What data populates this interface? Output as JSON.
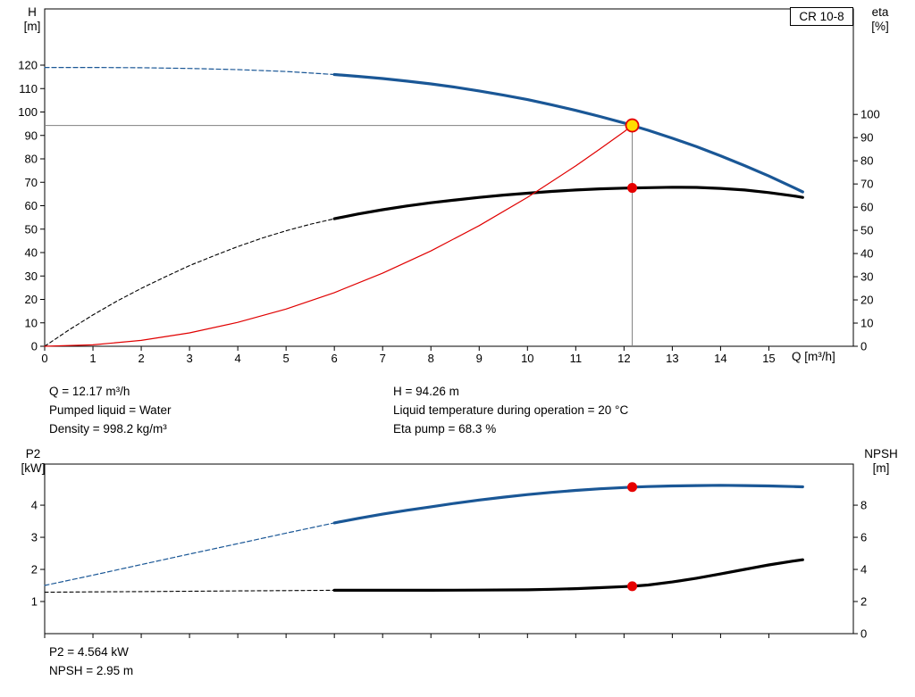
{
  "model_box": "CR 10-8",
  "info_top": {
    "col1": [
      "Q = 12.17 m³/h",
      "Pumped liquid = Water",
      "Density = 998.2 kg/m³"
    ],
    "col2": [
      "H = 94.26 m",
      "Liquid temperature during operation = 20 °C",
      "Eta pump = 68.3 %"
    ]
  },
  "info_bottom": [
    "P2 = 4.564 kW",
    "NPSH = 2.95 m"
  ],
  "chart_data": [
    {
      "type": "line",
      "title": "CR 10-8",
      "x_axis": {
        "label": "Q [m³/h]",
        "min": 0,
        "max": 16.75,
        "ticks": [
          0,
          1,
          2,
          3,
          4,
          5,
          6,
          7,
          8,
          9,
          10,
          11,
          12,
          13,
          14,
          15
        ],
        "show_tick_labels": true
      },
      "y_left": {
        "label": "H",
        "unit": "[m]",
        "min": 0,
        "max": 144,
        "ticks": [
          0,
          10,
          20,
          30,
          40,
          50,
          60,
          70,
          80,
          90,
          100,
          110,
          120
        ]
      },
      "y_right": {
        "label": "eta",
        "unit": "[%]",
        "min": 0,
        "max": 145.5,
        "ticks": [
          0,
          10,
          20,
          30,
          40,
          50,
          60,
          70,
          80,
          90,
          100
        ]
      },
      "crosshair": {
        "x": 12.17,
        "y": 94.26,
        "axis": "left",
        "color": "#808080"
      },
      "series": [
        {
          "name": "head-curve-extrapolated",
          "axis": "left",
          "color": "#1a5796",
          "width": 1.2,
          "dash": "5,3",
          "points": [
            [
              0,
              119
            ],
            [
              1,
              119
            ],
            [
              2,
              118.9
            ],
            [
              3,
              118.6
            ],
            [
              4,
              118.1
            ],
            [
              5,
              117.3
            ],
            [
              6,
              116
            ]
          ]
        },
        {
          "name": "head-curve",
          "axis": "left",
          "color": "#1a5796",
          "width": 3.2,
          "points": [
            [
              6,
              116
            ],
            [
              6.5,
              115.2
            ],
            [
              7,
              114.3
            ],
            [
              7.5,
              113.2
            ],
            [
              8,
              112
            ],
            [
              8.5,
              110.6
            ],
            [
              9,
              109
            ],
            [
              9.5,
              107.2
            ],
            [
              10,
              105.3
            ],
            [
              10.5,
              103.1
            ],
            [
              11,
              100.7
            ],
            [
              11.5,
              98.1
            ],
            [
              12,
              95.3
            ],
            [
              12.17,
              94.26
            ],
            [
              12.5,
              92.2
            ],
            [
              13,
              88.8
            ],
            [
              13.5,
              85.2
            ],
            [
              14,
              81.3
            ],
            [
              14.5,
              77.1
            ],
            [
              15,
              72.7
            ],
            [
              15.5,
              67.9
            ],
            [
              15.7,
              65.9
            ]
          ]
        },
        {
          "name": "efficiency-curve-extrapolated",
          "axis": "right",
          "color": "#000000",
          "width": 1.1,
          "dash": "4,3",
          "points": [
            [
              0,
              0
            ],
            [
              0.5,
              7
            ],
            [
              1,
              13.5
            ],
            [
              1.5,
              19.5
            ],
            [
              2,
              25
            ],
            [
              2.5,
              30
            ],
            [
              3,
              34.8
            ],
            [
              3.5,
              39
            ],
            [
              4,
              43
            ],
            [
              4.5,
              46.6
            ],
            [
              5,
              49.8
            ],
            [
              5.5,
              52.6
            ],
            [
              6,
              55
            ]
          ]
        },
        {
          "name": "efficiency-curve",
          "axis": "right",
          "color": "#000000",
          "width": 3.2,
          "points": [
            [
              6,
              55
            ],
            [
              6.5,
              57.1
            ],
            [
              7,
              58.9
            ],
            [
              7.5,
              60.5
            ],
            [
              8,
              61.9
            ],
            [
              8.5,
              63.1
            ],
            [
              9,
              64.2
            ],
            [
              9.5,
              65.2
            ],
            [
              10,
              66
            ],
            [
              10.5,
              66.8
            ],
            [
              11,
              67.4
            ],
            [
              11.5,
              67.9
            ],
            [
              12,
              68.2
            ],
            [
              12.17,
              68.3
            ],
            [
              12.5,
              68.4
            ],
            [
              13,
              68.6
            ],
            [
              13.5,
              68.5
            ],
            [
              14,
              68.1
            ],
            [
              14.5,
              67.4
            ],
            [
              15,
              66.3
            ],
            [
              15.5,
              64.9
            ],
            [
              15.7,
              64.2
            ]
          ]
        },
        {
          "name": "system-curve",
          "axis": "left",
          "color": "#e00000",
          "width": 1.2,
          "points": [
            [
              0,
              0
            ],
            [
              1,
              0.6
            ],
            [
              2,
              2.5
            ],
            [
              3,
              5.7
            ],
            [
              4,
              10.2
            ],
            [
              5,
              15.9
            ],
            [
              6,
              22.9
            ],
            [
              7,
              31.2
            ],
            [
              8,
              40.7
            ],
            [
              9,
              51.5
            ],
            [
              10,
              63.6
            ],
            [
              11,
              77
            ],
            [
              11.5,
              84.2
            ],
            [
              12,
              91.6
            ],
            [
              12.17,
              94.26
            ]
          ]
        }
      ],
      "markers": [
        {
          "name": "duty-point-head",
          "x": 12.17,
          "y": 94.26,
          "axis": "left",
          "r": 7,
          "fill": "#ffdd00",
          "stroke": "#e60000"
        },
        {
          "name": "duty-point-efficiency",
          "x": 12.17,
          "y": 68.3,
          "axis": "right",
          "r": 5.5,
          "fill": "#e60000"
        }
      ]
    },
    {
      "type": "line",
      "title": "P2 and NPSH",
      "x_axis": {
        "label": "",
        "min": 0,
        "max": 16.75,
        "ticks": [
          0,
          1,
          2,
          3,
          4,
          5,
          6,
          7,
          8,
          9,
          10,
          11,
          12,
          13,
          14,
          15
        ],
        "show_tick_labels": false
      },
      "y_left": {
        "label": "P2",
        "unit": "[kW]",
        "min": 0,
        "max": 5.28,
        "ticks": [
          1,
          2,
          3,
          4
        ]
      },
      "y_right": {
        "label": "NPSH",
        "unit": "[m]",
        "min": 0,
        "max": 10.56,
        "ticks": [
          0,
          2,
          4,
          6,
          8
        ]
      },
      "series": [
        {
          "name": "p2-curve-extrapolated",
          "axis": "left",
          "color": "#1a5796",
          "width": 1.2,
          "dash": "5,3",
          "points": [
            [
              0,
              1.5
            ],
            [
              1,
              1.82
            ],
            [
              2,
              2.15
            ],
            [
              3,
              2.48
            ],
            [
              4,
              2.8
            ],
            [
              5,
              3.13
            ],
            [
              6,
              3.45
            ]
          ]
        },
        {
          "name": "p2-curve",
          "axis": "left",
          "color": "#1a5796",
          "width": 3.2,
          "points": [
            [
              6,
              3.45
            ],
            [
              6.5,
              3.59
            ],
            [
              7,
              3.72
            ],
            [
              7.5,
              3.84
            ],
            [
              8,
              3.95
            ],
            [
              8.5,
              4.06
            ],
            [
              9,
              4.16
            ],
            [
              9.5,
              4.25
            ],
            [
              10,
              4.33
            ],
            [
              10.5,
              4.4
            ],
            [
              11,
              4.46
            ],
            [
              11.5,
              4.51
            ],
            [
              12,
              4.55
            ],
            [
              12.17,
              4.564
            ],
            [
              12.5,
              4.58
            ],
            [
              13,
              4.6
            ],
            [
              13.5,
              4.61
            ],
            [
              14,
              4.62
            ],
            [
              14.5,
              4.61
            ],
            [
              15,
              4.6
            ],
            [
              15.5,
              4.58
            ],
            [
              15.7,
              4.57
            ]
          ]
        },
        {
          "name": "npsh-curve-extrapolated",
          "axis": "right",
          "color": "#000000",
          "width": 1.1,
          "dash": "4,3",
          "points": [
            [
              0,
              2.58
            ],
            [
              1,
              2.6
            ],
            [
              2,
              2.62
            ],
            [
              3,
              2.64
            ],
            [
              4,
              2.66
            ],
            [
              5,
              2.68
            ],
            [
              6,
              2.7
            ]
          ]
        },
        {
          "name": "npsh-curve",
          "axis": "right",
          "color": "#000000",
          "width": 3.2,
          "points": [
            [
              6,
              2.7
            ],
            [
              7,
              2.7
            ],
            [
              8,
              2.7
            ],
            [
              9,
              2.71
            ],
            [
              10,
              2.73
            ],
            [
              10.5,
              2.76
            ],
            [
              11,
              2.8
            ],
            [
              11.5,
              2.86
            ],
            [
              12,
              2.93
            ],
            [
              12.17,
              2.95
            ],
            [
              12.5,
              3.03
            ],
            [
              13,
              3.22
            ],
            [
              13.5,
              3.45
            ],
            [
              14,
              3.72
            ],
            [
              14.5,
              4
            ],
            [
              15,
              4.28
            ],
            [
              15.5,
              4.52
            ],
            [
              15.7,
              4.6
            ]
          ]
        }
      ],
      "markers": [
        {
          "name": "duty-point-p2",
          "x": 12.17,
          "y": 4.564,
          "axis": "left",
          "r": 5.5,
          "fill": "#e60000"
        },
        {
          "name": "duty-point-npsh",
          "x": 12.17,
          "y": 2.95,
          "axis": "right",
          "r": 5.5,
          "fill": "#e60000"
        }
      ]
    }
  ]
}
